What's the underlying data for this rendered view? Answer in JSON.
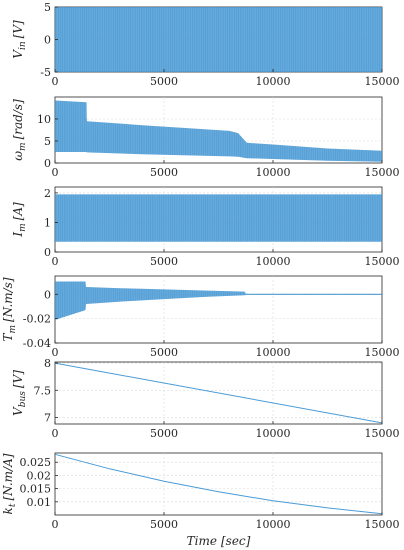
{
  "chart_data": [
    {
      "type": "line",
      "ylabel_main": "V",
      "ylabel_sub": "in",
      "ylabel_unit": "[V]",
      "xlim": [
        0,
        15000
      ],
      "ylim": [
        -5,
        5
      ],
      "xticks": [
        "0",
        "5000",
        "10000",
        "15000"
      ],
      "yticks": [
        "-5",
        "0",
        "5"
      ],
      "grid": true,
      "band": {
        "x": [
          0,
          15000
        ],
        "lower": [
          -5,
          -5
        ],
        "upper": [
          5,
          5
        ]
      },
      "band_color": "#4a9bd6"
    },
    {
      "type": "line",
      "ylabel_main": "ω",
      "ylabel_sub": "m",
      "ylabel_unit": "[rad/s]",
      "xlim": [
        0,
        15000
      ],
      "ylim": [
        0,
        15
      ],
      "xticks": [
        "0",
        "5000",
        "10000",
        "15000"
      ],
      "yticks": [
        "0",
        "5",
        "10"
      ],
      "grid": true,
      "band": {
        "x": [
          0,
          1450,
          1460,
          4000,
          8000,
          8400,
          8800,
          10000,
          12500,
          15000
        ],
        "lower": [
          2.5,
          2.5,
          2.4,
          2.0,
          1.5,
          1.4,
          1.1,
          0.9,
          0.5,
          0.3
        ],
        "upper": [
          14.2,
          13.8,
          9.5,
          8.6,
          7.3,
          6.8,
          4.6,
          4.2,
          3.3,
          2.8
        ]
      },
      "band_color": "#4a9bd6"
    },
    {
      "type": "line",
      "ylabel_main": "I",
      "ylabel_sub": "m",
      "ylabel_unit": "[A]",
      "xlim": [
        0,
        15000
      ],
      "ylim": [
        0,
        2.2
      ],
      "xticks": [
        "0",
        "5000",
        "10000",
        "15000"
      ],
      "yticks": [
        "0",
        "1",
        "2"
      ],
      "grid": true,
      "band": {
        "x": [
          0,
          15000
        ],
        "lower": [
          0.35,
          0.35
        ],
        "upper": [
          1.95,
          1.95
        ]
      },
      "band_color": "#4a9bd6"
    },
    {
      "type": "line",
      "ylabel_main": "T",
      "ylabel_sub": "m",
      "ylabel_unit": "[N.m/s]",
      "xlim": [
        0,
        15000
      ],
      "ylim": [
        -0.04,
        0.015
      ],
      "xticks": [
        "0",
        "5000",
        "10000",
        "15000"
      ],
      "yticks": [
        "-0.04",
        "-0.02",
        "0"
      ],
      "grid": true,
      "band": {
        "x": [
          0,
          1400,
          1420,
          3000,
          5000,
          7000,
          8700,
          8750,
          15000
        ],
        "lower": [
          -0.021,
          -0.013,
          -0.008,
          -0.006,
          -0.004,
          -0.002,
          -0.0008,
          -0.0006,
          -0.0006
        ],
        "upper": [
          0.0105,
          0.0105,
          0.006,
          0.005,
          0.004,
          0.003,
          0.0022,
          0.0005,
          0.0005
        ]
      },
      "band_color": "#4a9bd6"
    },
    {
      "type": "line",
      "ylabel_main": "V",
      "ylabel_sub": "bus",
      "ylabel_unit": "[V]",
      "xlim": [
        0,
        15000
      ],
      "ylim": [
        6.88,
        8.02
      ],
      "xticks": [
        "0",
        "5000",
        "10000",
        "15000"
      ],
      "yticks": [
        "7",
        "7.5",
        "8"
      ],
      "grid": true,
      "line": {
        "x": [
          0,
          15000
        ],
        "y": [
          8.0,
          6.9
        ]
      },
      "line_color": "#4a9bd6"
    },
    {
      "type": "line",
      "ylabel_main": "k",
      "ylabel_sub": "t",
      "ylabel_unit": "[N.m/A]",
      "xlim": [
        0,
        15000
      ],
      "ylim": [
        0.005,
        0.0285
      ],
      "xticks": [
        "0",
        "5000",
        "10000",
        "15000"
      ],
      "yticks": [
        "0.01",
        "0.015",
        "0.02",
        "0.025"
      ],
      "grid": true,
      "xlabel_main": "Time",
      "xlabel_unit": "[sec]",
      "line": {
        "x": [
          0,
          2500,
          5000,
          7500,
          10000,
          12500,
          15000
        ],
        "y": [
          0.028,
          0.0225,
          0.0178,
          0.0138,
          0.0104,
          0.0077,
          0.0055
        ]
      },
      "line_color": "#4a9bd6"
    }
  ]
}
